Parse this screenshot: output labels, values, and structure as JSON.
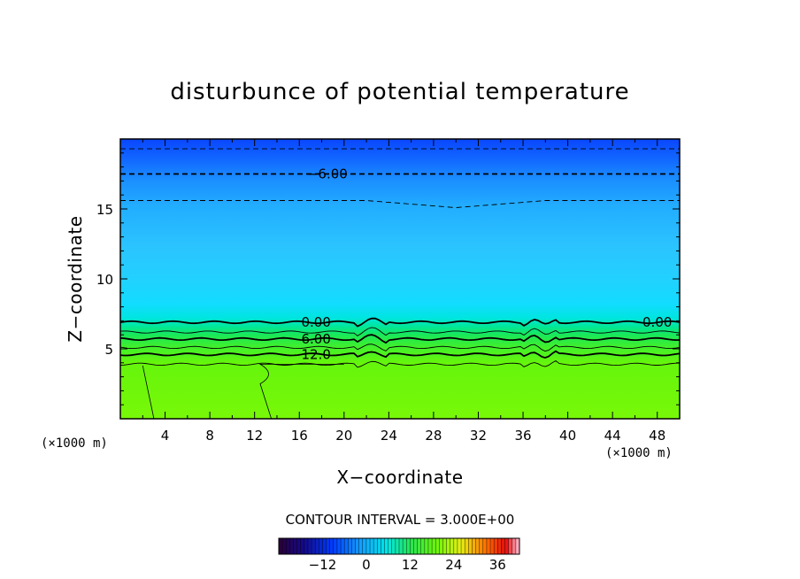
{
  "chart_data": {
    "type": "heatmap",
    "title": "disturbunce of potential temperature",
    "xlabel": "X−coordinate",
    "ylabel": "Z−coordinate",
    "x_unit": "(×1000 m)",
    "y_unit": "(×1000 m)",
    "xlim": [
      0,
      50
    ],
    "ylim": [
      0,
      20
    ],
    "x_ticks": [
      4,
      8,
      12,
      16,
      20,
      24,
      28,
      32,
      36,
      40,
      44,
      48
    ],
    "x_tick_labels": [
      "4",
      "8",
      "12",
      "16",
      "20",
      "24",
      "28",
      "32",
      "36",
      "40",
      "44",
      "48"
    ],
    "y_ticks": [
      5,
      10,
      15
    ],
    "y_tick_labels": [
      "5",
      "10",
      "15"
    ],
    "contour_interval_text": "CONTOUR INTERVAL = 3.000E+00",
    "contour_interval": 3.0,
    "contour_labels": [
      {
        "text": "−6.00",
        "x": 18.5,
        "z": 17.5
      },
      {
        "text": "0.00",
        "x": 17.5,
        "z": 6.9
      },
      {
        "text": "0.00",
        "x": 48.0,
        "z": 6.9
      },
      {
        "text": "6.00",
        "x": 17.5,
        "z": 5.7
      },
      {
        "text": "12.0",
        "x": 17.5,
        "z": 4.6
      }
    ],
    "contour_levels_z": [
      {
        "level": -9,
        "z": 19.3,
        "dashed": true
      },
      {
        "level": -6,
        "z": 17.5,
        "dashed": true
      },
      {
        "level": -3,
        "z": 15.6,
        "dashed": true
      },
      {
        "level": 0,
        "z": 6.9,
        "dashed": false
      },
      {
        "level": 3,
        "z": 6.2,
        "dashed": false
      },
      {
        "level": 6,
        "z": 5.7,
        "dashed": false
      },
      {
        "level": 9,
        "z": 5.1,
        "dashed": false
      },
      {
        "level": 12,
        "z": 4.6,
        "dashed": false
      },
      {
        "level": 15,
        "z": 3.9,
        "dashed": false
      }
    ],
    "colorbar": {
      "min": -24,
      "max": 42,
      "tick_values": [
        -12,
        0,
        12,
        24,
        36
      ],
      "tick_labels": [
        "−12",
        "0",
        "12",
        "24",
        "36"
      ]
    }
  }
}
